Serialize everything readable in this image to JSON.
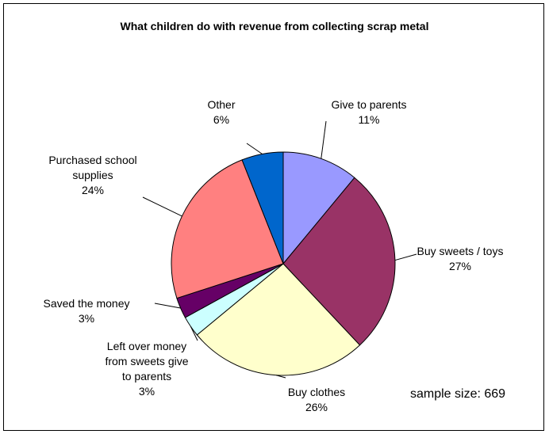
{
  "chart_data": {
    "type": "pie",
    "title": "What children do with revenue from collecting scrap metal",
    "slices": [
      {
        "label": [
          "Give to parents"
        ],
        "pct": "11%",
        "value": 11,
        "color": "#9999ff"
      },
      {
        "label": [
          "Buy sweets / toys"
        ],
        "pct": "27%",
        "value": 27,
        "color": "#993366"
      },
      {
        "label": [
          "Buy clothes"
        ],
        "pct": "26%",
        "value": 26,
        "color": "#ffffcc"
      },
      {
        "label": [
          "Left over money",
          "from sweets give",
          "to parents"
        ],
        "pct": "3%",
        "value": 3,
        "color": "#ccffff"
      },
      {
        "label": [
          "Saved the money"
        ],
        "pct": "3%",
        "value": 3,
        "color": "#660066"
      },
      {
        "label": [
          "Purchased school",
          "supplies"
        ],
        "pct": "24%",
        "value": 24,
        "color": "#ff8080"
      },
      {
        "label": [
          "Other"
        ],
        "pct": "6%",
        "value": 6,
        "color": "#0066cc"
      }
    ],
    "annotation": "sample size: 669"
  }
}
